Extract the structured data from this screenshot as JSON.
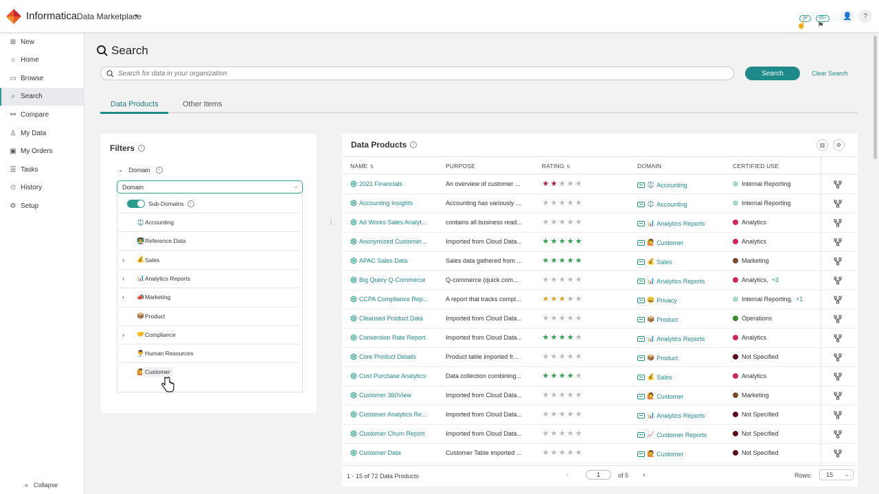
{
  "header": {
    "brand": "Informatica",
    "product": "Data Marketplace",
    "badge_links": "0",
    "badge_flags": "99+"
  },
  "sidebar": {
    "items": [
      {
        "label": "New",
        "icon": "plus-square-icon"
      },
      {
        "label": "Home",
        "icon": "home-icon"
      },
      {
        "label": "Browse",
        "icon": "browse-icon"
      },
      {
        "label": "Search",
        "icon": "search-icon",
        "active": true
      },
      {
        "label": "Compare",
        "icon": "compare-icon"
      },
      {
        "label": "My Data",
        "icon": "user-icon"
      },
      {
        "label": "My Orders",
        "icon": "orders-icon"
      },
      {
        "label": "Tasks",
        "icon": "tasks-icon"
      },
      {
        "label": "History",
        "icon": "history-icon"
      },
      {
        "label": "Setup",
        "icon": "gear-icon"
      }
    ],
    "collapse": "Collapse"
  },
  "page": {
    "title": "Search",
    "search_placeholder": "Search for data in your organization",
    "search_button": "Search",
    "clear_button": "Clear Search"
  },
  "tabs": [
    "Data Products",
    "Other Items"
  ],
  "filters": {
    "title": "Filters",
    "domain_label": "Domain",
    "domain_select": "Domain",
    "subdomains_label": "Sub-Domains",
    "items": [
      {
        "label": "Accounting",
        "emoji": "⚖️",
        "expandable": false
      },
      {
        "label": "Reference Data",
        "emoji": "👨‍🏫",
        "expandable": false
      },
      {
        "label": "Sales",
        "emoji": "💰",
        "expandable": true
      },
      {
        "label": "Analytics Reports",
        "emoji": "📊",
        "expandable": true
      },
      {
        "label": "Marketing",
        "emoji": "📣",
        "expandable": true
      },
      {
        "label": "Product",
        "emoji": "📦",
        "expandable": false
      },
      {
        "label": "Compliance",
        "emoji": "🤝",
        "expandable": true
      },
      {
        "label": "Human Resources",
        "emoji": "👨‍💼",
        "expandable": false
      },
      {
        "label": "Customer",
        "emoji": "🙋",
        "expandable": false
      }
    ]
  },
  "products": {
    "title": "Data Products",
    "columns": [
      "NAME",
      "PURPOSE",
      "RATING",
      "DOMAIN",
      "CERTIFIED USE"
    ],
    "rows": [
      {
        "name": "2021 Financials",
        "purpose": "An overview of customer ...",
        "rating": 2,
        "star_color": "#b5173b",
        "domain": "Accounting",
        "domain_emoji": "⚖️",
        "use": "Internal Reporting",
        "use_color": "#a8d8c8",
        "plus": ""
      },
      {
        "name": "Accounting Insights",
        "purpose": "Accounting has variously ...",
        "rating": 0,
        "star_color": "#b5173b",
        "domain": "Accounting",
        "domain_emoji": "⚖️",
        "use": "Internal Reporting",
        "use_color": "#a8d8c8",
        "plus": ""
      },
      {
        "name": "Ad Works Sales Analyt...",
        "purpose": "contains all business read...",
        "rating": 0,
        "star_color": "#b5173b",
        "domain": "Analytics Reports",
        "domain_emoji": "📊",
        "use": "Analytics",
        "use_color": "#d6245a",
        "plus": ""
      },
      {
        "name": "Anonymized Customer...",
        "purpose": "Imported from Cloud Data...",
        "rating": 5,
        "star_color": "#2e9e4f",
        "domain": "Customer",
        "domain_emoji": "🙋",
        "use": "Analytics",
        "use_color": "#d6245a",
        "plus": ""
      },
      {
        "name": "APAC Sales Data",
        "purpose": "Sales data gathered from ...",
        "rating": 5,
        "star_color": "#2e9e4f",
        "domain": "Sales",
        "domain_emoji": "💰",
        "use": "Marketing",
        "use_color": "#7a4a2a",
        "plus": ""
      },
      {
        "name": "Big Query Q-Commerce",
        "purpose": "Q-commerce (quick com...",
        "rating": 0,
        "star_color": "#2e9e4f",
        "domain": "Analytics Reports",
        "domain_emoji": "📊",
        "use": "Analytics,",
        "use_color": "#d6245a",
        "plus": "+3"
      },
      {
        "name": "CCPA Compliance Rep...",
        "purpose": "A report that tracks compl...",
        "rating": 3,
        "star_color": "#e0a020",
        "domain": "Privacy",
        "domain_emoji": "😀",
        "use": "Internal Reporting,",
        "use_color": "#a8d8c8",
        "plus": "+1"
      },
      {
        "name": "Cleansed Product Data",
        "purpose": "Imported from Cloud Data...",
        "rating": 0,
        "star_color": "#2e9e4f",
        "domain": "Product",
        "domain_emoji": "📦",
        "use": "Operations",
        "use_color": "#3a8a2a",
        "plus": ""
      },
      {
        "name": "Conversion Rate Report",
        "purpose": "Imported from Cloud Data...",
        "rating": 4,
        "star_color": "#2e9e4f",
        "domain": "Analytics Reports",
        "domain_emoji": "📊",
        "use": "Analytics",
        "use_color": "#d6245a",
        "plus": ""
      },
      {
        "name": "Core Product Details",
        "purpose": "Product table imported fr...",
        "rating": 0,
        "star_color": "#2e9e4f",
        "domain": "Product",
        "domain_emoji": "📦",
        "use": "Not Specified",
        "use_color": "#5a0a1a",
        "plus": ""
      },
      {
        "name": "Cust Purchase Analytics",
        "purpose": "Data collection combining...",
        "rating": 4,
        "star_color": "#2e9e4f",
        "domain": "Sales",
        "domain_emoji": "💰",
        "use": "Analytics",
        "use_color": "#d6245a",
        "plus": ""
      },
      {
        "name": "Customer 360View",
        "purpose": "Imported from Cloud Data...",
        "rating": 0,
        "star_color": "#2e9e4f",
        "domain": "Customer",
        "domain_emoji": "🙋",
        "use": "Marketing",
        "use_color": "#7a4a2a",
        "plus": ""
      },
      {
        "name": "Customer Analytics Re...",
        "purpose": "Imported from Cloud Data...",
        "rating": 0,
        "star_color": "#2e9e4f",
        "domain": "Analytics Reports",
        "domain_emoji": "📊",
        "use": "Not Specified",
        "use_color": "#5a0a1a",
        "plus": ""
      },
      {
        "name": "Customer Churn Report",
        "purpose": "Imported from Cloud Data...",
        "rating": 0,
        "star_color": "#2e9e4f",
        "domain": "Customer Reports",
        "domain_emoji": "📈",
        "use": "Not Specified",
        "use_color": "#5a0a1a",
        "plus": ""
      },
      {
        "name": "Customer Data",
        "purpose": "Customer Table imported ...",
        "rating": 0,
        "star_color": "#2e9e4f",
        "domain": "Customer",
        "domain_emoji": "🙋",
        "use": "Not Specified",
        "use_color": "#5a0a1a",
        "plus": ""
      }
    ],
    "footer": {
      "count": "1 - 15 of 72 Data Products",
      "page": "1",
      "of": "of 5",
      "rows_label": "Rows:",
      "rows_value": "15"
    }
  },
  "colors": {
    "accent": "#1f8a8a",
    "star_empty": "#b8b8b8"
  }
}
